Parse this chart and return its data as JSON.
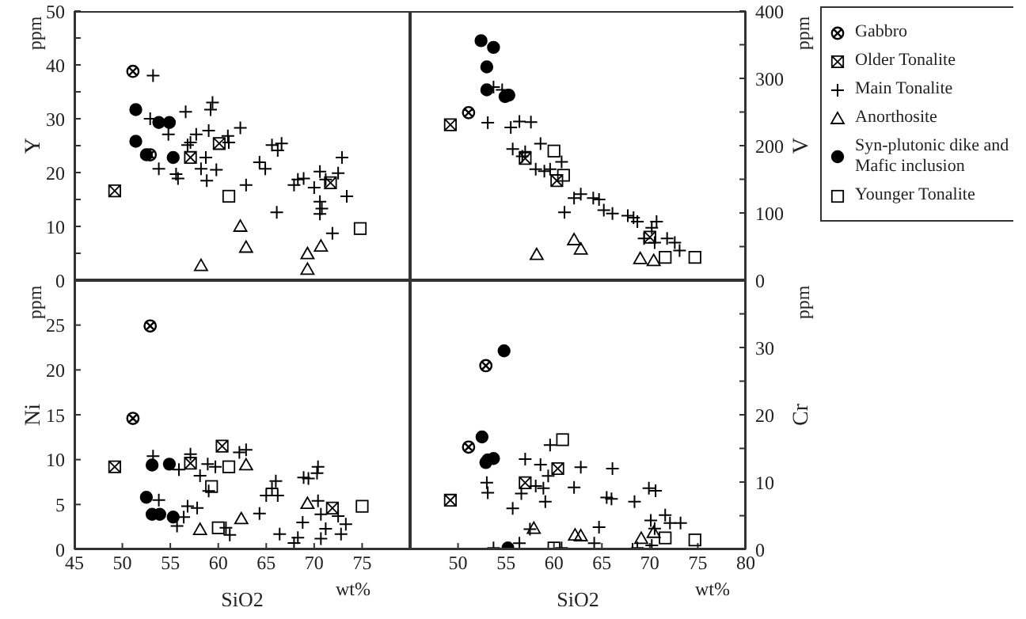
{
  "chart_data": [
    {
      "type": "scatter",
      "ylabel": "Y",
      "annotations": [
        "ppm"
      ],
      "xlim": [
        45,
        80
      ],
      "xticks": [
        45,
        50,
        55,
        60,
        65,
        70,
        75,
        80
      ],
      "ylim": [
        0,
        50
      ],
      "yticks": [
        0,
        {
          "value": 5,
          "label": null
        },
        10,
        {
          "value": 15,
          "label": null
        },
        20,
        {
          "value": 25,
          "label": null
        },
        30,
        {
          "value": 35,
          "label": null
        },
        40,
        {
          "value": 45,
          "label": null
        },
        50
      ],
      "tick_labels": "y",
      "legend": "right",
      "series": [
        {
          "name": "Gabbro",
          "color": "#000000",
          "x": [
            51.1,
            52.9
          ],
          "values": [
            38.8,
            23.3
          ]
        },
        {
          "name": "Older Tonalite",
          "color": "#000000",
          "x": [
            49.2,
            57.1,
            60.1,
            71.7
          ],
          "values": [
            16.6,
            22.8,
            25.4,
            18.1
          ]
        },
        {
          "name": "Main Tonalite",
          "color": "#000000",
          "marker": "cross",
          "x": [
            53.2,
            52.9,
            53.8,
            54.8,
            55.6,
            55.8,
            56.6,
            56.8,
            57.1,
            57.7,
            58.2,
            58.7,
            58.8,
            59.0,
            59.2,
            59.4,
            59.8,
            61.0,
            61.1,
            62.3,
            62.9,
            64.3,
            64.9,
            65.6,
            66.1,
            66.2,
            66.6,
            67.9,
            68.3,
            68.9,
            70.0,
            70.6,
            70.6,
            70.6,
            70.8,
            71.2,
            71.9,
            72.5,
            72.9,
            73.4
          ],
          "values": [
            38.0,
            30.0,
            20.7,
            27.1,
            19.7,
            18.9,
            31.3,
            25.1,
            25.6,
            27.1,
            20.7,
            22.8,
            18.5,
            27.8,
            31.7,
            33.0,
            20.5,
            26.8,
            25.6,
            28.3,
            17.7,
            21.9,
            20.7,
            25.1,
            12.6,
            24.1,
            25.4,
            17.7,
            18.7,
            18.9,
            17.2,
            20.2,
            14.6,
            12.3,
            13.3,
            18.7,
            8.7,
            19.9,
            22.8,
            15.6
          ]
        },
        {
          "name": "Anorthosite",
          "color": "#000000",
          "marker": "triangle",
          "x": [
            58.2,
            62.3,
            62.9,
            69.3,
            69.3,
            70.7
          ],
          "values": [
            2.7,
            10.0,
            6.1,
            4.9,
            2.0,
            6.3
          ]
        },
        {
          "name": "Syn-plutonic dike and Mafic inclusion",
          "color": "#000000",
          "marker": "circle",
          "x": [
            51.4,
            51.4,
            53.8,
            54.9,
            52.5,
            55.3
          ],
          "values": [
            31.7,
            25.8,
            29.3,
            29.3,
            23.3,
            22.8
          ]
        },
        {
          "name": "Younger Tonalite",
          "color": "#000000",
          "marker": "square",
          "x": [
            61.1,
            74.8
          ],
          "values": [
            15.6,
            9.6
          ]
        }
      ]
    },
    {
      "type": "scatter",
      "y2label": "V",
      "annotations": [
        "ppm"
      ],
      "xlim": [
        45,
        80
      ],
      "xticks": [
        45,
        50,
        55,
        60,
        65,
        70,
        75,
        80
      ],
      "y2lim": [
        0,
        400
      ],
      "y2ticks": [
        0,
        {
          "value": 50,
          "label": null
        },
        100,
        {
          "value": 150,
          "label": null
        },
        200,
        {
          "value": 250,
          "label": null
        },
        300,
        {
          "value": 350,
          "label": null
        },
        400
      ],
      "tick_labels": "y",
      "series": [
        {
          "color": "#000000",
          "axis": "y2",
          "x": [
            51.1
          ],
          "values": [
            249
          ]
        },
        {
          "color": "#000000",
          "axis": "y2",
          "x": [
            49.2,
            57.0,
            60.3,
            70.0
          ],
          "values": [
            231,
            181,
            148,
            64
          ]
        },
        {
          "color": "#000000",
          "marker": "cross",
          "axis": "y2",
          "x": [
            53.7,
            54.6,
            53.1,
            55.5,
            56.4,
            57.6,
            55.7,
            56.7,
            57.0,
            58.1,
            58.6,
            59.0,
            59.6,
            60.8,
            61.1,
            62.1,
            62.8,
            64.1,
            64.7,
            65.2,
            66.1,
            67.7,
            68.3,
            68.7,
            69.4,
            70.2,
            70.7,
            70.5,
            71.8,
            72.6,
            73.1
          ],
          "values": [
            287,
            283,
            234,
            227,
            236,
            235,
            195,
            184,
            191,
            165,
            203,
            162,
            165,
            176,
            101,
            122,
            128,
            122,
            120,
            104,
            99,
            96,
            93,
            87,
            62,
            78,
            87,
            56,
            62,
            56,
            44
          ]
        },
        {
          "color": "#000000",
          "marker": "triangle",
          "axis": "y2",
          "x": [
            58.2,
            62.1,
            62.8,
            69.0,
            70.4
          ],
          "values": [
            38,
            60,
            46,
            32,
            29
          ]
        },
        {
          "color": "#000000",
          "marker": "circle",
          "axis": "y2",
          "x": [
            52.4,
            53.7,
            53.0,
            53.0,
            54.9,
            55.3
          ],
          "values": [
            356,
            346,
            317,
            283,
            273,
            275
          ]
        },
        {
          "color": "#000000",
          "marker": "square",
          "axis": "y2",
          "x": [
            60.0,
            61.0,
            71.6,
            74.7
          ],
          "values": [
            192,
            156,
            34,
            34
          ]
        }
      ]
    },
    {
      "type": "scatter",
      "xlabel": "SiO2",
      "ylabel": "Ni",
      "annotations": [
        "ppm",
        "wt%"
      ],
      "xlim": [
        45,
        80
      ],
      "xticks": [
        45,
        50,
        55,
        60,
        65,
        70,
        75,
        {
          "value": 80,
          "label": null
        }
      ],
      "ylim": [
        0,
        30
      ],
      "yticks": [
        0,
        5,
        10,
        15,
        20,
        25,
        {
          "value": 30,
          "label": null
        }
      ],
      "series": [
        {
          "color": "#000000",
          "x": [
            52.9,
            51.1
          ],
          "values": [
            24.9,
            14.6
          ]
        },
        {
          "color": "#000000",
          "x": [
            49.2,
            57.1,
            60.4,
            71.9
          ],
          "values": [
            9.2,
            9.6,
            11.5,
            4.6
          ]
        },
        {
          "color": "#000000",
          "marker": "cross",
          "x": [
            53.2,
            53.8,
            55.7,
            55.9,
            56.4,
            56.8,
            57.1,
            57.8,
            58.1,
            58.9,
            59.0,
            59.7,
            60.8,
            61.2,
            62.2,
            62.9,
            64.3,
            65.0,
            65.6,
            66.0,
            66.2,
            66.4,
            67.9,
            68.3,
            68.8,
            68.9,
            69.4,
            70.3,
            70.4,
            70.4,
            70.7,
            70.7,
            71.2,
            72.5,
            72.8,
            73.3
          ],
          "values": [
            10.4,
            5.5,
            2.6,
            8.9,
            3.6,
            4.8,
            10.6,
            4.6,
            8.2,
            9.5,
            6.5,
            9.2,
            2.4,
            1.6,
            10.8,
            11.1,
            4.0,
            6.0,
            6.8,
            7.6,
            6.0,
            1.7,
            0.7,
            1.3,
            3.0,
            8.0,
            7.9,
            8.5,
            9.2,
            5.4,
            3.9,
            1.2,
            2.3,
            3.7,
            1.7,
            2.8
          ]
        },
        {
          "color": "#000000",
          "marker": "triangle",
          "x": [
            58.1,
            62.9,
            62.4,
            69.3
          ],
          "values": [
            2.2,
            9.4,
            3.4,
            5.1
          ]
        },
        {
          "color": "#000000",
          "marker": "circle",
          "x": [
            53.1,
            54.9,
            52.5,
            53.1,
            53.9,
            55.3
          ],
          "values": [
            9.4,
            9.5,
            5.8,
            3.9,
            3.9,
            3.6
          ]
        },
        {
          "color": "#000000",
          "marker": "square",
          "x": [
            61.1,
            59.3,
            60.0,
            75.0
          ],
          "values": [
            9.2,
            7.0,
            2.4,
            4.8
          ]
        }
      ]
    },
    {
      "type": "scatter",
      "xlabel": "SiO2",
      "y2label": "Cr",
      "annotations": [
        "ppm",
        "wt%"
      ],
      "xlim": [
        45,
        80
      ],
      "xticks": [
        {
          "value": 45,
          "label": null
        },
        50,
        55,
        60,
        65,
        70,
        75,
        80
      ],
      "y2lim": [
        0,
        40
      ],
      "y2ticks": [
        0,
        {
          "value": 5,
          "label": null
        },
        10,
        {
          "value": 15,
          "label": null
        },
        20,
        {
          "value": 25,
          "label": null
        },
        30,
        {
          "value": 35,
          "label": null
        },
        {
          "value": 40,
          "label": null
        }
      ],
      "series": [
        {
          "color": "#000000",
          "axis": "y2",
          "x": [
            52.9,
            51.1
          ],
          "values": [
            27.3,
            15.2
          ]
        },
        {
          "color": "#000000",
          "axis": "y2",
          "x": [
            49.2,
            57.0,
            60.4
          ],
          "values": [
            7.3,
            9.9,
            12.0
          ]
        },
        {
          "color": "#000000",
          "marker": "cross",
          "axis": "y2",
          "x": [
            53.0,
            53.1,
            53.7,
            55.7,
            56.4,
            56.6,
            57.0,
            57.5,
            58.1,
            58.6,
            58.9,
            59.1,
            59.4,
            59.6,
            60.8,
            62.1,
            62.8,
            64.7,
            64.2,
            66.1,
            65.5,
            66.0,
            68.4,
            68.2,
            68.7,
            69.9,
            70.6,
            70.1,
            70.2,
            70.5,
            71.6,
            72.1,
            73.2
          ],
          "values": [
            9.9,
            8.4,
            0.2,
            6.1,
            0.9,
            8.3,
            13.4,
            3.0,
            9.4,
            12.6,
            9.1,
            7.1,
            10.9,
            15.5,
            0.2,
            9.2,
            12.2,
            3.3,
            0.9,
            12.0,
            7.7,
            7.5,
            7.1,
            0,
            0.2,
            9.1,
            8.7,
            4.3,
            0.6,
            3.1,
            5.1,
            3.9,
            3.9
          ]
        },
        {
          "color": "#000000",
          "marker": "triangle",
          "axis": "y2",
          "x": [
            57.9,
            62.2,
            62.8,
            69.1,
            70.4
          ],
          "values": [
            3.1,
            2.1,
            2.0,
            1.6,
            2.5
          ]
        },
        {
          "color": "#000000",
          "marker": "circle",
          "axis": "y2",
          "x": [
            54.8,
            52.5,
            52.9,
            53.1,
            53.7,
            55.2
          ],
          "values": [
            29.5,
            16.7,
            12.9,
            13.3,
            13.5,
            0.2
          ]
        },
        {
          "color": "#000000",
          "marker": "square",
          "axis": "y2",
          "x": [
            60.9,
            60.0,
            71.6,
            74.7
          ],
          "values": [
            16.3,
            0.2,
            1.7,
            1.4
          ]
        }
      ]
    }
  ]
}
